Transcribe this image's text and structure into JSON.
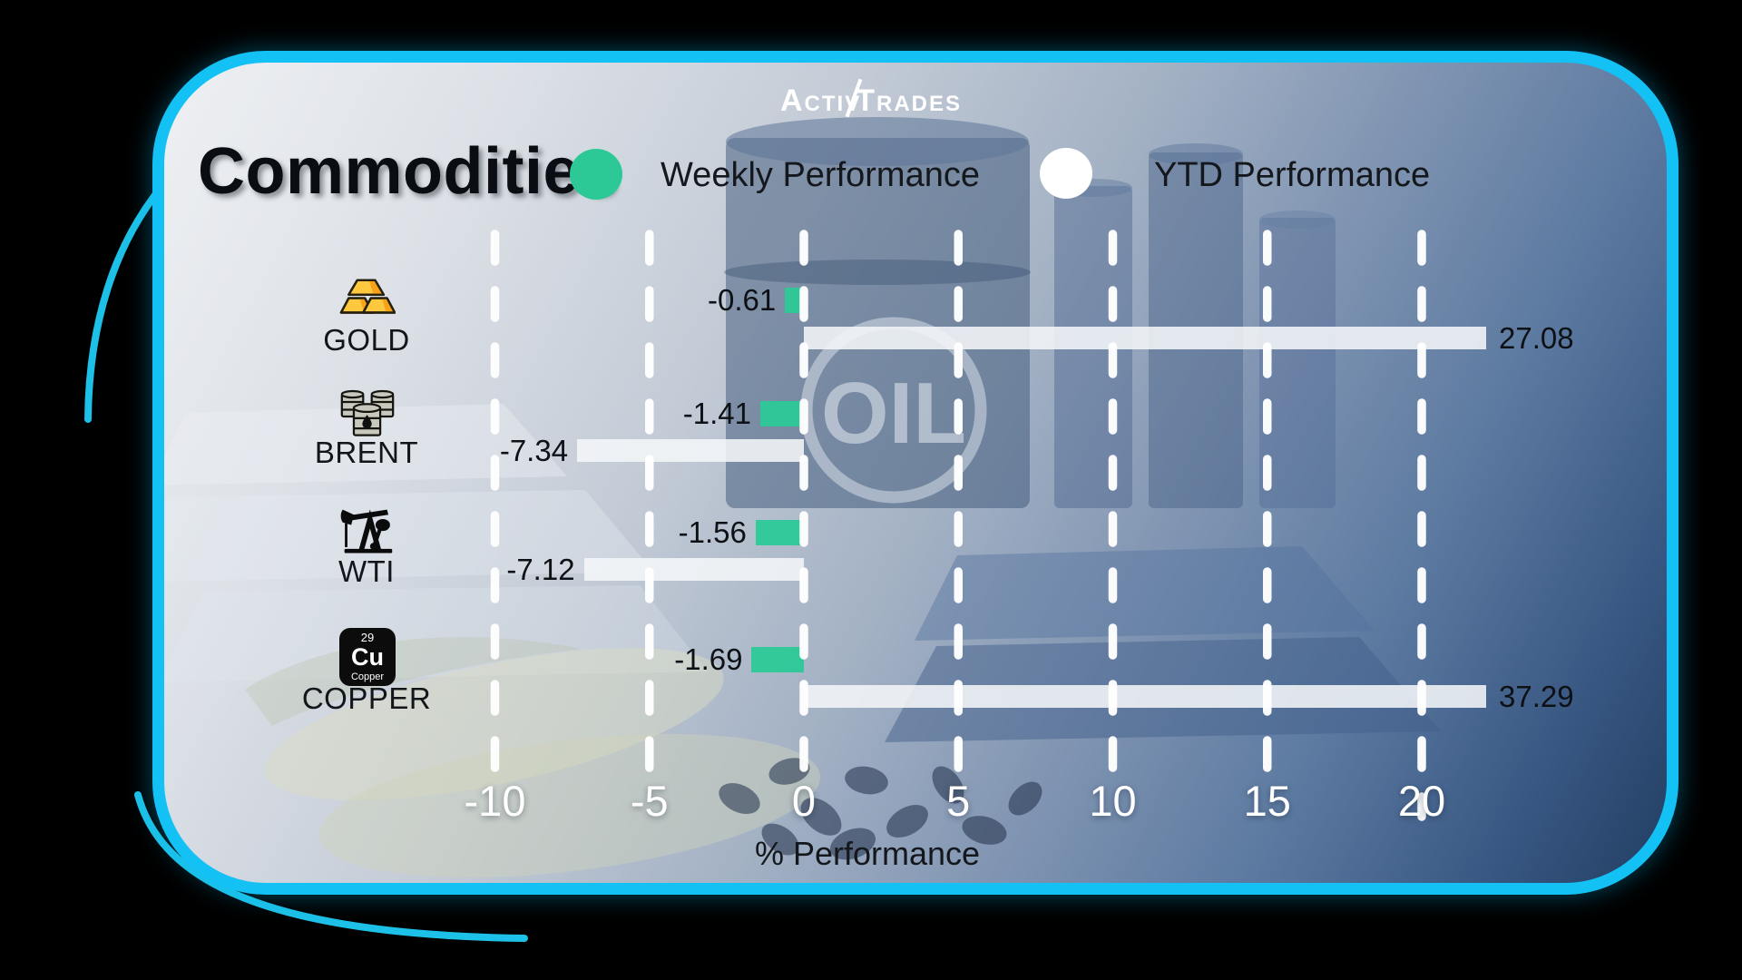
{
  "brand": {
    "name_part1": "Activ",
    "name_part2": "Trades"
  },
  "header": {
    "title": "Commodities",
    "legend": [
      {
        "label": "Weekly Performance",
        "color": "#2cc997"
      },
      {
        "label": "YTD Performance",
        "color": "#ffffff"
      }
    ]
  },
  "background": {
    "barrel_text": "OIL"
  },
  "icons": {
    "copper_tile": {
      "number": "29",
      "symbol": "Cu",
      "name": "Copper"
    }
  },
  "chart_data": {
    "type": "bar",
    "orientation": "horizontal",
    "title": "Commodities",
    "series_names": [
      "Weekly Performance",
      "YTD Performance"
    ],
    "categories": [
      "GOLD",
      "BRENT",
      "WTI",
      "COPPER"
    ],
    "rows": [
      {
        "category": "GOLD",
        "icon": "gold-bars-icon",
        "weekly": -0.61,
        "ytd": 27.08
      },
      {
        "category": "BRENT",
        "icon": "oil-barrels-icon",
        "weekly": -1.41,
        "ytd": -7.34
      },
      {
        "category": "WTI",
        "icon": "oil-pumpjack-icon",
        "weekly": -1.56,
        "ytd": -7.12
      },
      {
        "category": "COPPER",
        "icon": "copper-element-icon",
        "weekly": -1.69,
        "ytd": 37.29
      }
    ],
    "x_ticks": [
      -10,
      -5,
      0,
      5,
      10,
      15,
      20
    ],
    "xlabel": "% Performance",
    "xlim": [
      -12.5,
      22.5
    ],
    "grid": "dashed-white-vertical",
    "legend_position": "top",
    "colors": {
      "weekly": "#2cc997",
      "ytd": "#f4f6f8"
    }
  }
}
